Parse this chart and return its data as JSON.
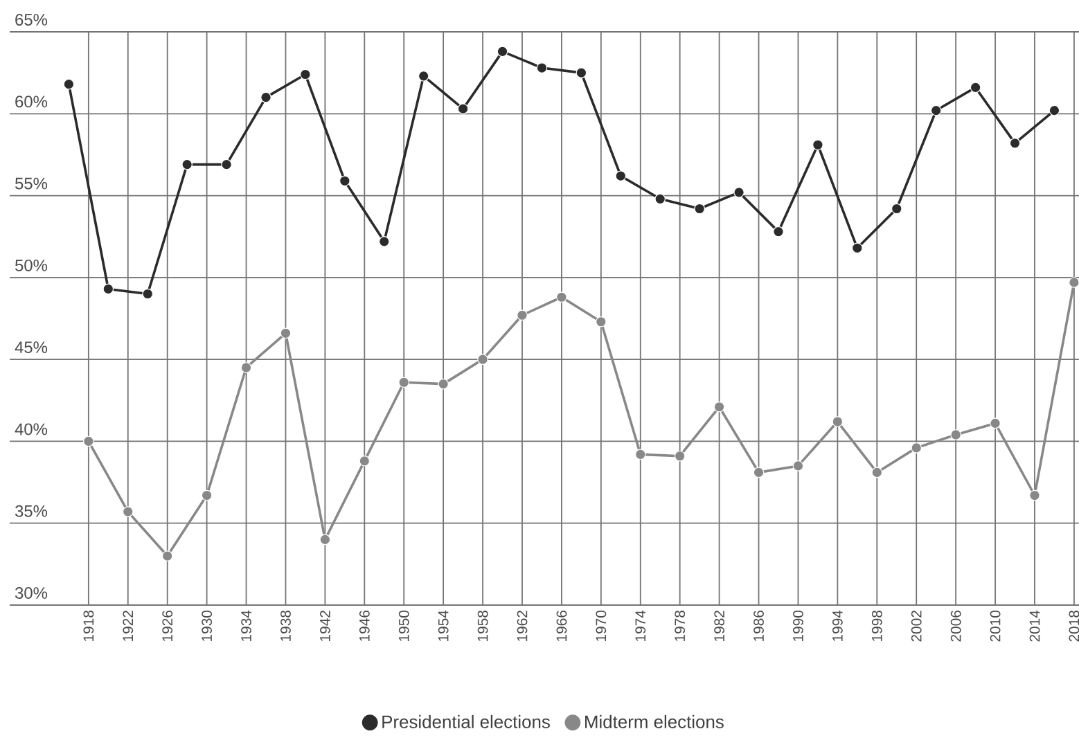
{
  "chart_data": {
    "type": "line",
    "xlim": [
      1910,
      2018.5
    ],
    "ylim": [
      30,
      65
    ],
    "xticks": [
      1918,
      1922,
      1926,
      1930,
      1934,
      1938,
      1942,
      1946,
      1950,
      1954,
      1958,
      1962,
      1966,
      1970,
      1974,
      1978,
      1982,
      1986,
      1990,
      1994,
      1998,
      2002,
      2006,
      2010,
      2014,
      2018
    ],
    "yticks": [
      {
        "value": 30,
        "label": "30%"
      },
      {
        "value": 35,
        "label": "35%"
      },
      {
        "value": 40,
        "label": "40%"
      },
      {
        "value": 45,
        "label": "45%"
      },
      {
        "value": 50,
        "label": "50%"
      },
      {
        "value": 55,
        "label": "55%"
      },
      {
        "value": 60,
        "label": "60%"
      },
      {
        "value": 65,
        "label": "65%"
      }
    ],
    "grid": true,
    "legend": "bottom",
    "marker": "circle",
    "line_style": "solid",
    "series": [
      {
        "name": "Presidential elections",
        "color": "#2b2b2b",
        "x": [
          1916,
          1920,
          1924,
          1928,
          1932,
          1936,
          1940,
          1944,
          1948,
          1952,
          1956,
          1960,
          1964,
          1968,
          1972,
          1976,
          1980,
          1984,
          1988,
          1992,
          1996,
          2000,
          2004,
          2008,
          2012,
          2016
        ],
        "values": [
          61.8,
          49.3,
          49.0,
          56.9,
          56.9,
          61.0,
          62.4,
          55.9,
          52.2,
          62.3,
          60.3,
          63.8,
          62.8,
          62.5,
          56.2,
          54.8,
          54.2,
          55.2,
          52.8,
          58.1,
          51.8,
          54.2,
          60.2,
          61.6,
          58.2,
          60.2
        ]
      },
      {
        "name": "Midterm elections",
        "color": "#888888",
        "x": [
          1918,
          1922,
          1926,
          1930,
          1934,
          1938,
          1942,
          1946,
          1950,
          1954,
          1958,
          1962,
          1966,
          1970,
          1974,
          1978,
          1982,
          1986,
          1990,
          1994,
          1998,
          2002,
          2006,
          2010,
          2014,
          2018
        ],
        "values": [
          40.0,
          35.7,
          33.0,
          36.7,
          44.5,
          46.6,
          34.0,
          38.8,
          43.6,
          43.5,
          45.0,
          47.7,
          48.8,
          47.3,
          39.2,
          39.1,
          42.1,
          38.1,
          38.5,
          41.2,
          38.1,
          39.6,
          40.4,
          41.1,
          36.7,
          49.7
        ]
      }
    ]
  }
}
